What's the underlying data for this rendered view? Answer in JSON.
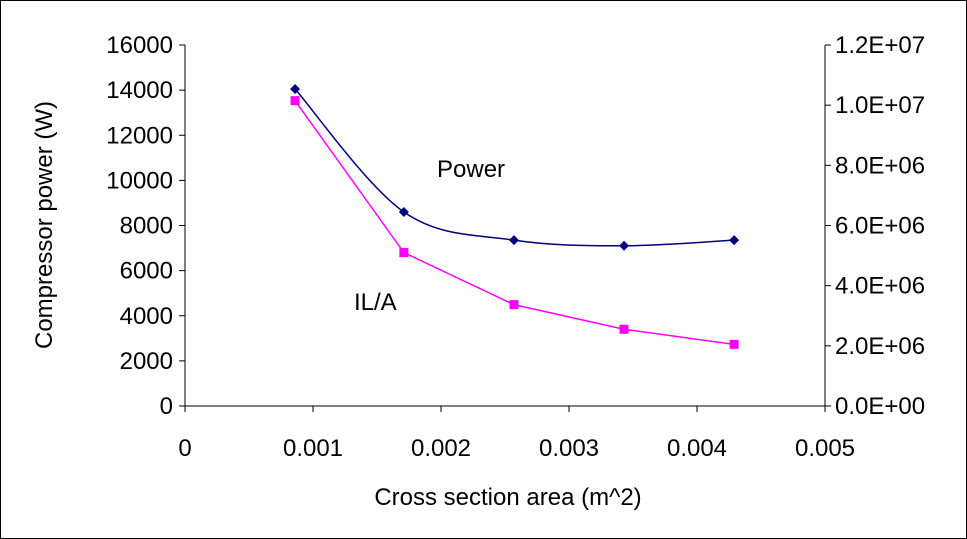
{
  "chart_data": {
    "type": "line",
    "xlabel": "Cross section area (m^2)",
    "ylabel": "Compressor power (W)",
    "y2label": "",
    "xlim": [
      0,
      0.005
    ],
    "ylim": [
      0,
      16000
    ],
    "y2lim": [
      0,
      12000000
    ],
    "x_ticks": [
      "0",
      "0.001",
      "0.002",
      "0.003",
      "0.004",
      "0.005"
    ],
    "y_ticks": [
      "0",
      "2000",
      "4000",
      "6000",
      "8000",
      "10000",
      "12000",
      "14000",
      "16000"
    ],
    "y2_ticks": [
      "0.0E+00",
      "2.0E+06",
      "4.0E+06",
      "6.0E+06",
      "8.0E+06",
      "1.0E+07",
      "1.2E+07"
    ],
    "series": [
      {
        "name": "Power",
        "axis": "left",
        "color": "#000080",
        "marker": "diamond",
        "smooth": true,
        "x": [
          0.00086,
          0.00171,
          0.00257,
          0.00343,
          0.00429
        ],
        "y": [
          14050,
          8600,
          7350,
          7100,
          7350
        ]
      },
      {
        "name": "IL/A",
        "axis": "right",
        "color": "#FF00FF",
        "marker": "square",
        "smooth": false,
        "x": [
          0.00086,
          0.00171,
          0.00257,
          0.00343,
          0.00429
        ],
        "y": [
          10150000,
          5100000,
          3370000,
          2550000,
          2050000
        ]
      }
    ],
    "annotations": [
      {
        "text": "Power",
        "series": "Power"
      },
      {
        "text": "IL/A",
        "series": "IL/A"
      }
    ],
    "grid": false,
    "legend": "none"
  }
}
